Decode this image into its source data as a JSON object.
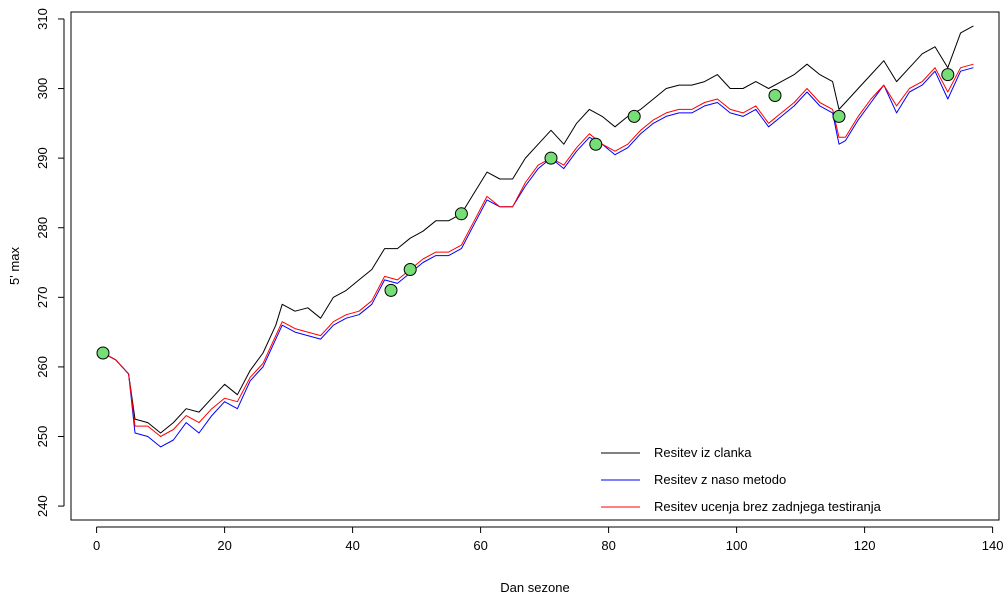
{
  "chart_data": {
    "type": "line",
    "title": "",
    "xlabel": "Dan sezone",
    "ylabel": "5' max",
    "xlim": [
      -4,
      141
    ],
    "ylim": [
      238,
      311
    ],
    "x_ticks": [
      0,
      20,
      40,
      60,
      80,
      100,
      120,
      140
    ],
    "y_ticks": [
      240,
      250,
      260,
      270,
      280,
      290,
      300,
      310
    ],
    "grid": false,
    "legend_position": "bottom-right",
    "series": [
      {
        "name": "Resitev iz clanka",
        "color": "#000000",
        "x": [
          1,
          3,
          5,
          6,
          8,
          10,
          12,
          14,
          16,
          18,
          20,
          22,
          24,
          26,
          28,
          29,
          31,
          33,
          35,
          37,
          39,
          41,
          43,
          45,
          47,
          49,
          51,
          53,
          55,
          57,
          59,
          61,
          63,
          65,
          67,
          69,
          71,
          73,
          75,
          77,
          79,
          81,
          83,
          85,
          87,
          89,
          91,
          93,
          95,
          97,
          99,
          101,
          103,
          105,
          107,
          109,
          111,
          113,
          115,
          116,
          117,
          119,
          121,
          123,
          125,
          127,
          129,
          131,
          133,
          135,
          137
        ],
        "values": [
          262,
          261,
          259,
          252.5,
          252,
          250.5,
          252,
          254,
          253.5,
          255.5,
          257.5,
          256,
          259.5,
          262,
          266,
          269,
          268,
          268.5,
          267,
          270,
          271,
          272.5,
          274,
          277,
          277,
          278.5,
          279.5,
          281,
          281,
          282,
          285,
          288,
          287,
          287,
          290,
          292,
          294,
          292,
          295,
          297,
          296,
          294.5,
          296,
          297,
          298.5,
          300,
          300.5,
          300.5,
          301,
          302,
          300,
          300,
          301,
          300,
          301,
          302,
          303.5,
          302,
          301,
          297,
          298,
          300,
          302,
          304,
          301,
          303,
          305,
          306,
          303,
          308,
          309
        ]
      },
      {
        "name": "Resitev z naso metodo",
        "color": "#0000ff",
        "x": [
          1,
          3,
          5,
          6,
          8,
          10,
          12,
          14,
          16,
          18,
          20,
          22,
          24,
          26,
          28,
          29,
          31,
          33,
          35,
          37,
          39,
          41,
          43,
          45,
          47,
          49,
          51,
          53,
          55,
          57,
          59,
          61,
          63,
          65,
          67,
          69,
          71,
          73,
          75,
          77,
          79,
          81,
          83,
          85,
          87,
          89,
          91,
          93,
          95,
          97,
          99,
          101,
          103,
          105,
          107,
          109,
          111,
          113,
          115,
          116,
          117,
          119,
          121,
          123,
          125,
          127,
          129,
          131,
          133,
          135,
          137
        ],
        "values": [
          262,
          261,
          259,
          250.5,
          250,
          248.5,
          249.5,
          252,
          250.5,
          253,
          255,
          254,
          258,
          260,
          264,
          266,
          265,
          264.5,
          264,
          266,
          267,
          267.5,
          269,
          272.5,
          272,
          273.5,
          275,
          276,
          276,
          277,
          280.5,
          284,
          283,
          283,
          286,
          288.5,
          290,
          288.5,
          291,
          293,
          292,
          290.5,
          291.5,
          293.5,
          295,
          296,
          296.5,
          296.5,
          297.5,
          298,
          296.5,
          296,
          297,
          294.5,
          296,
          297.5,
          299.5,
          297.5,
          296.5,
          292,
          292.5,
          295.5,
          298,
          300.5,
          296.5,
          299.5,
          300.5,
          302.5,
          298.5,
          302.5,
          303
        ]
      },
      {
        "name": "Resitev ucenja brez zadnjega testiranja",
        "color": "#ff0000",
        "x": [
          1,
          3,
          5,
          6,
          8,
          10,
          12,
          14,
          16,
          18,
          20,
          22,
          24,
          26,
          28,
          29,
          31,
          33,
          35,
          37,
          39,
          41,
          43,
          45,
          47,
          49,
          51,
          53,
          55,
          57,
          59,
          61,
          63,
          65,
          67,
          69,
          71,
          73,
          75,
          77,
          79,
          81,
          83,
          85,
          87,
          89,
          91,
          93,
          95,
          97,
          99,
          101,
          103,
          105,
          107,
          109,
          111,
          113,
          115,
          116,
          117,
          119,
          121,
          123,
          125,
          127,
          129,
          131,
          133,
          135,
          137
        ],
        "values": [
          262,
          261,
          259,
          251.5,
          251.5,
          250,
          251,
          253,
          252,
          254,
          255.5,
          255,
          258.5,
          260.5,
          264.5,
          266.5,
          265.5,
          265,
          264.5,
          266.5,
          267.5,
          268,
          269.5,
          273,
          272.5,
          274,
          275.5,
          276.5,
          276.5,
          277.5,
          281,
          284.5,
          283,
          283,
          286.5,
          289,
          290,
          289,
          291.5,
          293.5,
          292,
          291,
          292,
          294,
          295.5,
          296.5,
          297,
          297,
          298,
          298.5,
          297,
          296.5,
          297.5,
          295,
          296.5,
          298,
          300,
          298,
          297,
          293,
          293,
          296,
          298.5,
          300.5,
          297.5,
          300,
          301,
          303,
          299.5,
          303,
          303.5
        ]
      },
      {
        "name": "",
        "type": "scatter",
        "color": "#77dd77",
        "x": [
          1,
          46,
          49,
          57,
          71,
          78,
          84,
          106,
          116,
          133
        ],
        "values": [
          262,
          271,
          274,
          282,
          290,
          292,
          296,
          299,
          296,
          302
        ]
      }
    ]
  }
}
